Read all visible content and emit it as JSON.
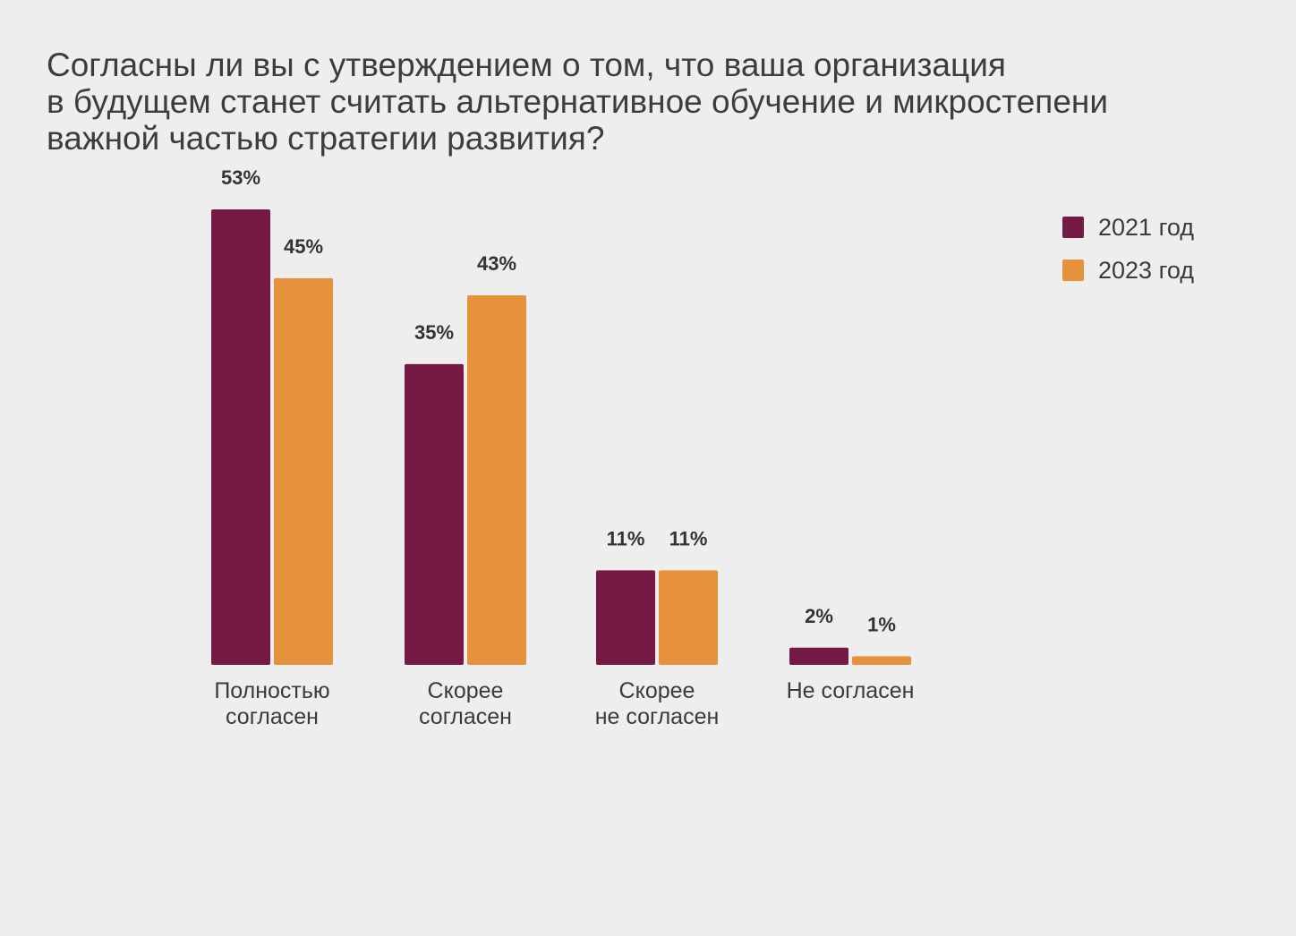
{
  "chart_data": {
    "type": "bar",
    "title_lines": [
      "Согласны ли вы с утверждением о том, что ваша организация",
      "в будущем станет считать альтернативное обучение и микростепени",
      "важной частью стратегии развития?"
    ],
    "categories": [
      [
        "Полностью",
        "согласен"
      ],
      [
        "Скорее",
        "согласен"
      ],
      [
        "Скорее",
        "не согласен"
      ],
      [
        "Не согласен"
      ]
    ],
    "series": [
      {
        "name": "2021 год",
        "color": "#751a45",
        "values": [
          53,
          35,
          11,
          2
        ],
        "labels": [
          "53%",
          "35%",
          "11%",
          "2%"
        ]
      },
      {
        "name": "2023 год",
        "color": "#e6913b",
        "values": [
          45,
          43,
          11,
          1
        ],
        "labels": [
          "45%",
          "43%",
          "11%",
          "1%"
        ]
      }
    ],
    "ylim": [
      0,
      53
    ],
    "value_suffix": "%",
    "legend_position": "top-right",
    "grid": false
  }
}
